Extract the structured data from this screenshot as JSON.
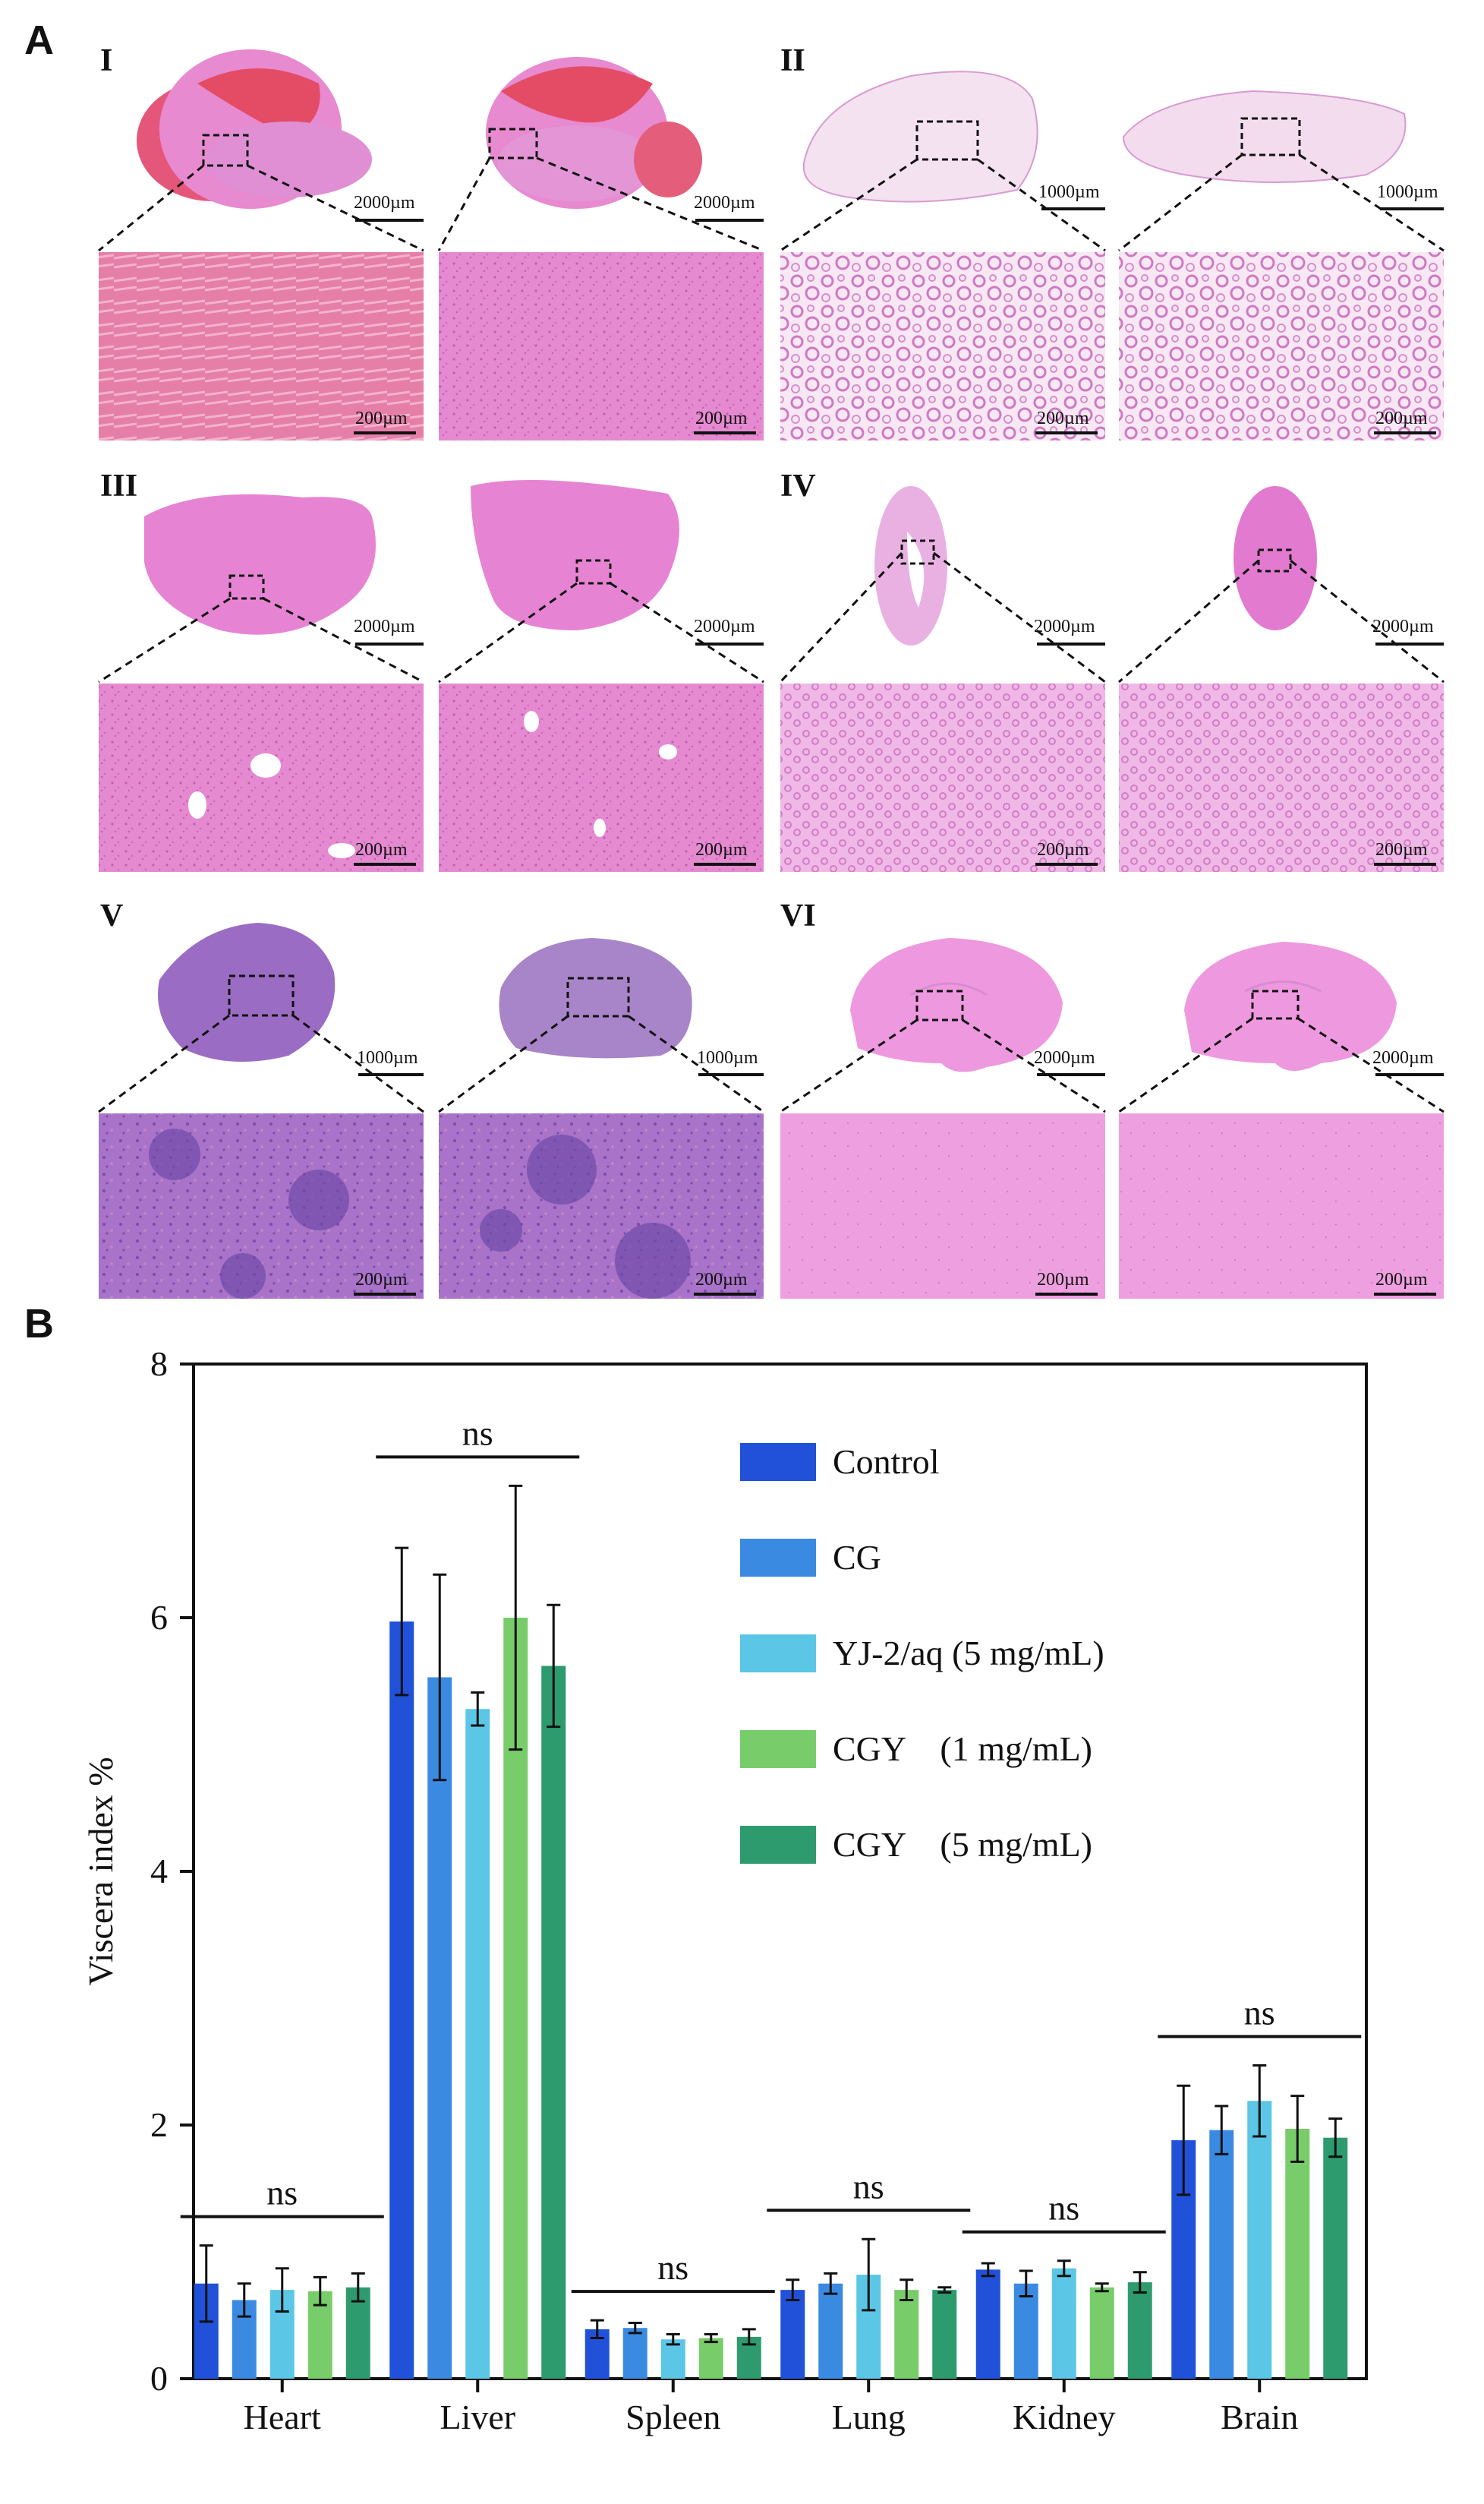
{
  "panels": {
    "a_label": "A",
    "b_label": "B"
  },
  "histology": {
    "organs": [
      {
        "roman": "I",
        "overview_scale": "2000µm",
        "zoom_scale": "200µm"
      },
      {
        "roman": "II",
        "overview_scale": "1000µm",
        "zoom_scale": "200µm"
      },
      {
        "roman": "III",
        "overview_scale": "2000µm",
        "zoom_scale": "200µm"
      },
      {
        "roman": "IV",
        "overview_scale": "2000µm",
        "zoom_scale": "200µm"
      },
      {
        "roman": "V",
        "overview_scale": "1000µm",
        "zoom_scale": "200µm"
      },
      {
        "roman": "VI",
        "overview_scale": "2000µm",
        "zoom_scale": "200µm"
      }
    ],
    "colors": {
      "he_pink": "#e58ad0",
      "he_light": "#f3c6ec",
      "he_red": "#e4576f",
      "he_purple": "#9b6cc4",
      "lung_bg": "#f4e6f2"
    }
  },
  "chart_data": {
    "type": "bar",
    "ylabel": "Viscera index %",
    "xlabel": "",
    "ylim": [
      0,
      8
    ],
    "yticks": [
      "0",
      "2",
      "4",
      "6",
      "8"
    ],
    "categories": [
      "Heart",
      "Liver",
      "Spleen",
      "Lung",
      "Kidney",
      "Brain"
    ],
    "significance": [
      "ns",
      "ns",
      "ns",
      "ns",
      "ns",
      "ns"
    ],
    "series": [
      {
        "name": "Control",
        "color": "#2051d8",
        "values": [
          0.75,
          5.97,
          0.39,
          0.7,
          0.86,
          1.88
        ],
        "errors": [
          0.3,
          0.58,
          0.07,
          0.08,
          0.05,
          0.43
        ]
      },
      {
        "name": "CG",
        "color": "#3b8ae2",
        "values": [
          0.62,
          5.53,
          0.4,
          0.75,
          0.75,
          1.96
        ],
        "errors": [
          0.13,
          0.81,
          0.04,
          0.08,
          0.1,
          0.19
        ]
      },
      {
        "name": "YJ-2/aq (5 mg/mL)",
        "color": "#5bc6e6",
        "values": [
          0.7,
          5.28,
          0.31,
          0.82,
          0.87,
          2.19
        ],
        "errors": [
          0.17,
          0.13,
          0.04,
          0.28,
          0.06,
          0.28
        ]
      },
      {
        "name": "CGY    (1 mg/mL)",
        "color": "#78cd6a",
        "values": [
          0.69,
          6.0,
          0.32,
          0.7,
          0.72,
          1.97
        ],
        "errors": [
          0.11,
          1.04,
          0.03,
          0.08,
          0.03,
          0.26
        ]
      },
      {
        "name": "CGY    (5 mg/mL)",
        "color": "#2e9b6f",
        "values": [
          0.72,
          5.62,
          0.33,
          0.7,
          0.76,
          1.9
        ],
        "errors": [
          0.11,
          0.48,
          0.06,
          0.02,
          0.08,
          0.15
        ]
      }
    ],
    "legend_position": "top-right"
  }
}
